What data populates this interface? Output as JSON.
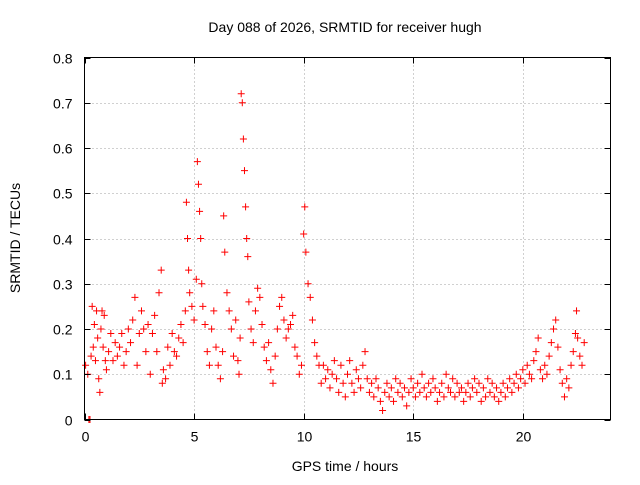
{
  "chart_data": {
    "type": "scatter",
    "title": "Day 088 of 2026, SRMTID for receiver hugh",
    "xlabel": "GPS time / hours",
    "ylabel": "SRMTID / TECUs",
    "xlim": [
      0,
      24
    ],
    "ylim": [
      0,
      0.8
    ],
    "xticks": [
      0,
      5,
      10,
      15,
      20
    ],
    "xtick_labels": [
      "0",
      "5",
      "10",
      "15",
      "20"
    ],
    "yticks": [
      0,
      0.1,
      0.2,
      0.3,
      0.4,
      0.5,
      0.6,
      0.7,
      0.8
    ],
    "ytick_labels": [
      "0",
      "0.1",
      "0.2",
      "0.3",
      "0.4",
      "0.5",
      "0.6",
      "0.7",
      "0.8"
    ],
    "grid": true,
    "marker": "+",
    "series": [
      {
        "name": "SRMTID",
        "color": "#ff0000",
        "points": [
          [
            0.05,
            0.12
          ],
          [
            0.15,
            0.1
          ],
          [
            0.2,
            0.0
          ],
          [
            0.25,
            0.0
          ],
          [
            0.3,
            0.14
          ],
          [
            0.35,
            0.25
          ],
          [
            0.4,
            0.16
          ],
          [
            0.45,
            0.21
          ],
          [
            0.5,
            0.13
          ],
          [
            0.55,
            0.24
          ],
          [
            0.6,
            0.18
          ],
          [
            0.65,
            0.09
          ],
          [
            0.7,
            0.06
          ],
          [
            0.75,
            0.2
          ],
          [
            0.8,
            0.24
          ],
          [
            0.85,
            0.16
          ],
          [
            0.9,
            0.23
          ],
          [
            0.95,
            0.13
          ],
          [
            1.0,
            0.11
          ],
          [
            1.1,
            0.15
          ],
          [
            1.2,
            0.19
          ],
          [
            1.3,
            0.13
          ],
          [
            1.4,
            0.17
          ],
          [
            1.5,
            0.14
          ],
          [
            1.6,
            0.16
          ],
          [
            1.7,
            0.19
          ],
          [
            1.8,
            0.12
          ],
          [
            1.9,
            0.15
          ],
          [
            2.0,
            0.2
          ],
          [
            2.1,
            0.17
          ],
          [
            2.2,
            0.22
          ],
          [
            2.3,
            0.27
          ],
          [
            2.4,
            0.12
          ],
          [
            2.5,
            0.19
          ],
          [
            2.6,
            0.24
          ],
          [
            2.7,
            0.2
          ],
          [
            2.8,
            0.15
          ],
          [
            2.9,
            0.21
          ],
          [
            3.0,
            0.1
          ],
          [
            3.1,
            0.19
          ],
          [
            3.2,
            0.23
          ],
          [
            3.3,
            0.15
          ],
          [
            3.4,
            0.28
          ],
          [
            3.5,
            0.33
          ],
          [
            3.55,
            0.08
          ],
          [
            3.6,
            0.11
          ],
          [
            3.7,
            0.09
          ],
          [
            3.8,
            0.16
          ],
          [
            3.9,
            0.12
          ],
          [
            4.0,
            0.19
          ],
          [
            4.1,
            0.15
          ],
          [
            4.2,
            0.14
          ],
          [
            4.3,
            0.18
          ],
          [
            4.4,
            0.21
          ],
          [
            4.5,
            0.17
          ],
          [
            4.6,
            0.24
          ],
          [
            4.65,
            0.48
          ],
          [
            4.7,
            0.4
          ],
          [
            4.75,
            0.33
          ],
          [
            4.8,
            0.28
          ],
          [
            4.9,
            0.25
          ],
          [
            5.0,
            0.22
          ],
          [
            5.1,
            0.31
          ],
          [
            5.15,
            0.57
          ],
          [
            5.2,
            0.52
          ],
          [
            5.25,
            0.46
          ],
          [
            5.3,
            0.4
          ],
          [
            5.35,
            0.3
          ],
          [
            5.4,
            0.25
          ],
          [
            5.5,
            0.21
          ],
          [
            5.6,
            0.15
          ],
          [
            5.7,
            0.12
          ],
          [
            5.8,
            0.2
          ],
          [
            5.9,
            0.24
          ],
          [
            6.0,
            0.16
          ],
          [
            6.1,
            0.12
          ],
          [
            6.2,
            0.09
          ],
          [
            6.3,
            0.15
          ],
          [
            6.35,
            0.45
          ],
          [
            6.4,
            0.37
          ],
          [
            6.5,
            0.28
          ],
          [
            6.6,
            0.24
          ],
          [
            6.7,
            0.2
          ],
          [
            6.8,
            0.14
          ],
          [
            6.9,
            0.22
          ],
          [
            7.0,
            0.13
          ],
          [
            7.05,
            0.1
          ],
          [
            7.1,
            0.18
          ],
          [
            7.15,
            0.72
          ],
          [
            7.2,
            0.7
          ],
          [
            7.25,
            0.62
          ],
          [
            7.3,
            0.55
          ],
          [
            7.35,
            0.47
          ],
          [
            7.4,
            0.4
          ],
          [
            7.45,
            0.36
          ],
          [
            7.5,
            0.26
          ],
          [
            7.6,
            0.2
          ],
          [
            7.7,
            0.17
          ],
          [
            7.8,
            0.24
          ],
          [
            7.9,
            0.29
          ],
          [
            8.0,
            0.27
          ],
          [
            8.1,
            0.21
          ],
          [
            8.2,
            0.16
          ],
          [
            8.3,
            0.13
          ],
          [
            8.4,
            0.17
          ],
          [
            8.5,
            0.11
          ],
          [
            8.6,
            0.08
          ],
          [
            8.7,
            0.14
          ],
          [
            8.8,
            0.2
          ],
          [
            8.9,
            0.25
          ],
          [
            9.0,
            0.27
          ],
          [
            9.1,
            0.22
          ],
          [
            9.2,
            0.18
          ],
          [
            9.3,
            0.2
          ],
          [
            9.4,
            0.21
          ],
          [
            9.5,
            0.23
          ],
          [
            9.6,
            0.16
          ],
          [
            9.7,
            0.14
          ],
          [
            9.8,
            0.1
          ],
          [
            9.9,
            0.12
          ],
          [
            10.0,
            0.41
          ],
          [
            10.05,
            0.47
          ],
          [
            10.1,
            0.37
          ],
          [
            10.2,
            0.3
          ],
          [
            10.3,
            0.27
          ],
          [
            10.4,
            0.22
          ],
          [
            10.5,
            0.17
          ],
          [
            10.6,
            0.14
          ],
          [
            10.7,
            0.12
          ],
          [
            10.8,
            0.08
          ],
          [
            10.9,
            0.12
          ],
          [
            11.0,
            0.09
          ],
          [
            11.1,
            0.11
          ],
          [
            11.2,
            0.07
          ],
          [
            11.3,
            0.1
          ],
          [
            11.4,
            0.13
          ],
          [
            11.5,
            0.09
          ],
          [
            11.6,
            0.06
          ],
          [
            11.7,
            0.12
          ],
          [
            11.8,
            0.08
          ],
          [
            11.9,
            0.05
          ],
          [
            12.0,
            0.1
          ],
          [
            12.1,
            0.13
          ],
          [
            12.2,
            0.08
          ],
          [
            12.3,
            0.06
          ],
          [
            12.4,
            0.11
          ],
          [
            12.5,
            0.09
          ],
          [
            12.6,
            0.07
          ],
          [
            12.7,
            0.12
          ],
          [
            12.8,
            0.15
          ],
          [
            12.9,
            0.09
          ],
          [
            13.0,
            0.06
          ],
          [
            13.1,
            0.08
          ],
          [
            13.2,
            0.05
          ],
          [
            13.3,
            0.09
          ],
          [
            13.4,
            0.07
          ],
          [
            13.5,
            0.04
          ],
          [
            13.6,
            0.02
          ],
          [
            13.7,
            0.06
          ],
          [
            13.8,
            0.08
          ],
          [
            13.9,
            0.05
          ],
          [
            14.0,
            0.07
          ],
          [
            14.1,
            0.04
          ],
          [
            14.2,
            0.09
          ],
          [
            14.3,
            0.06
          ],
          [
            14.4,
            0.08
          ],
          [
            14.5,
            0.05
          ],
          [
            14.6,
            0.07
          ],
          [
            14.7,
            0.03
          ],
          [
            14.8,
            0.06
          ],
          [
            14.9,
            0.09
          ],
          [
            15.0,
            0.07
          ],
          [
            15.1,
            0.05
          ],
          [
            15.2,
            0.08
          ],
          [
            15.3,
            0.06
          ],
          [
            15.4,
            0.1
          ],
          [
            15.5,
            0.07
          ],
          [
            15.6,
            0.05
          ],
          [
            15.7,
            0.08
          ],
          [
            15.8,
            0.06
          ],
          [
            15.9,
            0.09
          ],
          [
            16.0,
            0.07
          ],
          [
            16.1,
            0.04
          ],
          [
            16.2,
            0.06
          ],
          [
            16.3,
            0.08
          ],
          [
            16.4,
            0.05
          ],
          [
            16.5,
            0.1
          ],
          [
            16.6,
            0.07
          ],
          [
            16.7,
            0.06
          ],
          [
            16.8,
            0.09
          ],
          [
            16.9,
            0.05
          ],
          [
            17.0,
            0.08
          ],
          [
            17.1,
            0.06
          ],
          [
            17.2,
            0.07
          ],
          [
            17.3,
            0.04
          ],
          [
            17.4,
            0.06
          ],
          [
            17.5,
            0.08
          ],
          [
            17.6,
            0.05
          ],
          [
            17.7,
            0.07
          ],
          [
            17.8,
            0.09
          ],
          [
            17.9,
            0.06
          ],
          [
            18.0,
            0.08
          ],
          [
            18.1,
            0.04
          ],
          [
            18.2,
            0.07
          ],
          [
            18.3,
            0.05
          ],
          [
            18.4,
            0.09
          ],
          [
            18.5,
            0.06
          ],
          [
            18.6,
            0.08
          ],
          [
            18.7,
            0.05
          ],
          [
            18.8,
            0.07
          ],
          [
            18.9,
            0.04
          ],
          [
            19.0,
            0.06
          ],
          [
            19.1,
            0.08
          ],
          [
            19.2,
            0.05
          ],
          [
            19.3,
            0.07
          ],
          [
            19.4,
            0.09
          ],
          [
            19.5,
            0.06
          ],
          [
            19.6,
            0.08
          ],
          [
            19.7,
            0.1
          ],
          [
            19.8,
            0.07
          ],
          [
            19.9,
            0.09
          ],
          [
            20.0,
            0.11
          ],
          [
            20.1,
            0.08
          ],
          [
            20.2,
            0.12
          ],
          [
            20.3,
            0.1
          ],
          [
            20.4,
            0.09
          ],
          [
            20.5,
            0.13
          ],
          [
            20.6,
            0.15
          ],
          [
            20.7,
            0.18
          ],
          [
            20.8,
            0.11
          ],
          [
            20.9,
            0.09
          ],
          [
            21.0,
            0.12
          ],
          [
            21.1,
            0.1
          ],
          [
            21.2,
            0.14
          ],
          [
            21.3,
            0.17
          ],
          [
            21.4,
            0.2
          ],
          [
            21.5,
            0.22
          ],
          [
            21.6,
            0.16
          ],
          [
            21.7,
            0.11
          ],
          [
            21.8,
            0.08
          ],
          [
            21.9,
            0.05
          ],
          [
            22.0,
            0.09
          ],
          [
            22.1,
            0.07
          ],
          [
            22.2,
            0.12
          ],
          [
            22.3,
            0.15
          ],
          [
            22.4,
            0.19
          ],
          [
            22.45,
            0.24
          ],
          [
            22.5,
            0.18
          ],
          [
            22.6,
            0.14
          ],
          [
            22.7,
            0.12
          ],
          [
            22.8,
            0.17
          ]
        ]
      }
    ]
  }
}
